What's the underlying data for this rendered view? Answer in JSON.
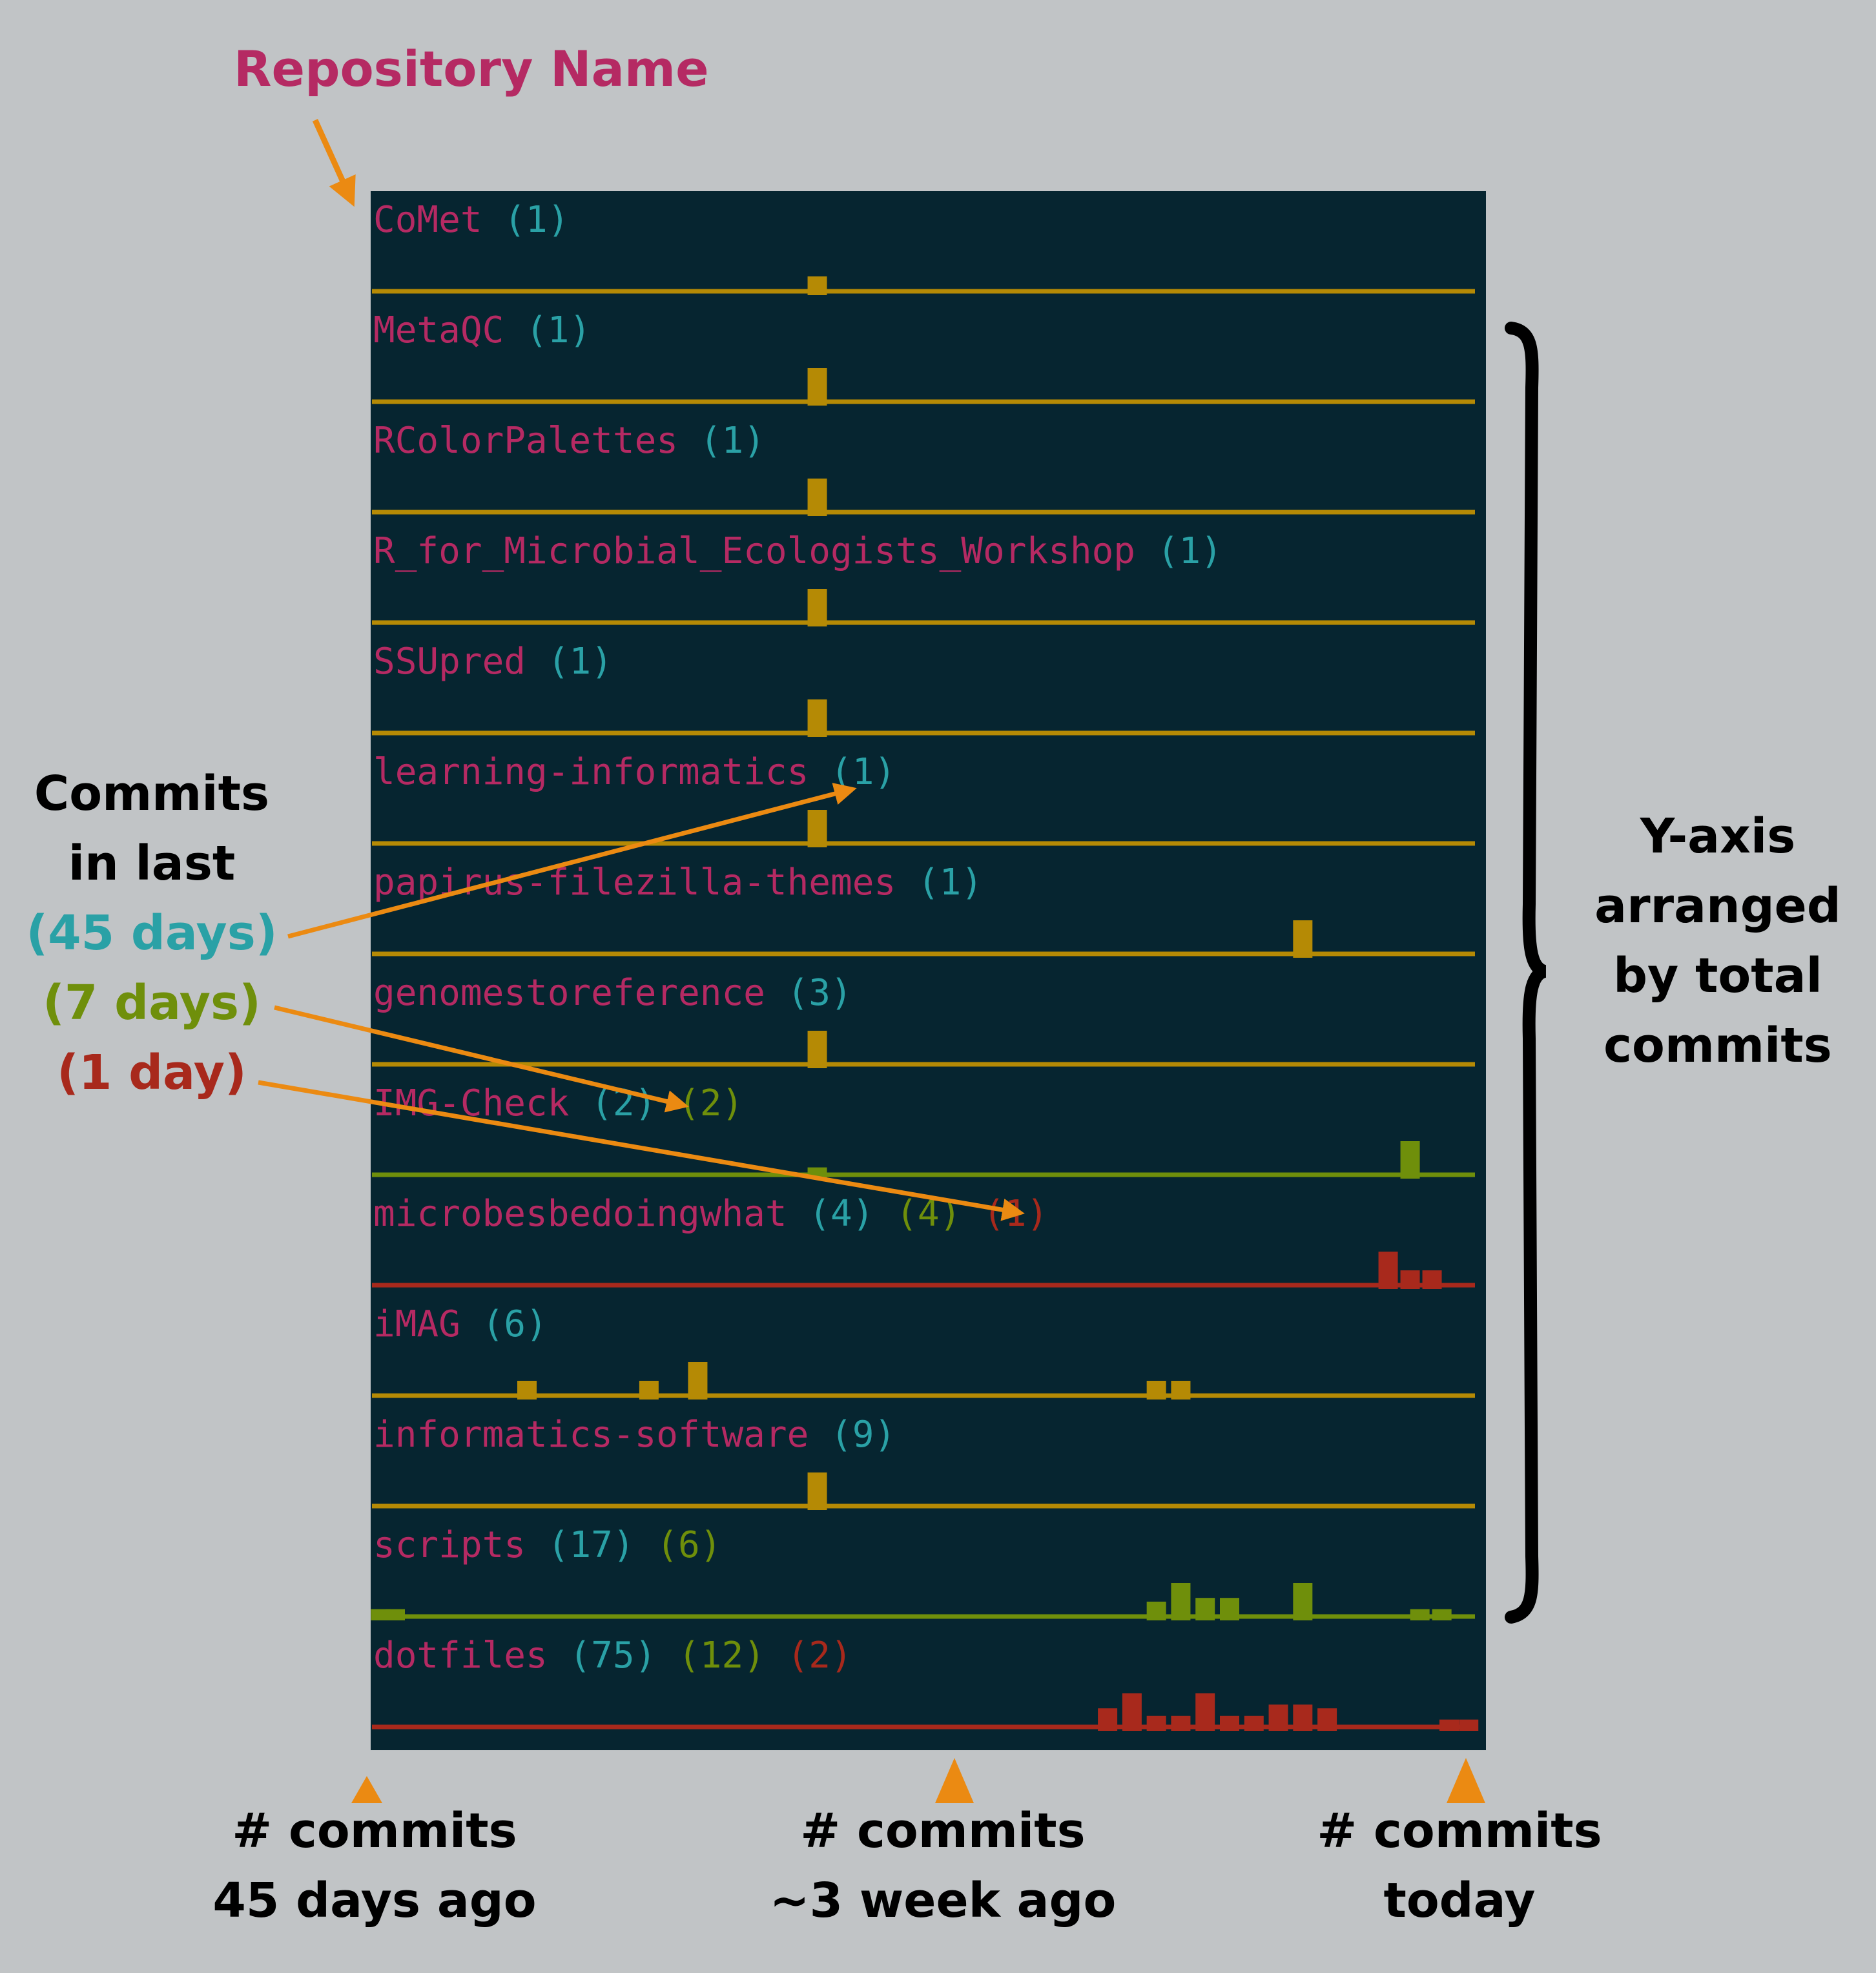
{
  "title_label": "Repository Name",
  "legend": {
    "line1": "Commits",
    "line2": "in last",
    "d45": "(45 days)",
    "d7": "(7 days)",
    "d1": "(1 day)"
  },
  "right_note": [
    "Y-axis",
    "arranged",
    "by total",
    "commits"
  ],
  "bottom": [
    {
      "l1": "# commits",
      "l2": "45 days ago"
    },
    {
      "l1": "# commits",
      "l2": "~3 week ago"
    },
    {
      "l1": "# commits",
      "l2": "today"
    }
  ],
  "colors": {
    "annotation_arrow": "#eb8a12",
    "title": "#b52a63",
    "d45": "#2aa1a6",
    "d7": "#6f8f0b",
    "d1": "#a8291c",
    "bar_yellow": "#b58a05",
    "bar_green": "#6f8f0b",
    "bar_red": "#a8291c",
    "terminal_bg": "#062530"
  },
  "repos": [
    {
      "name": "CoMet",
      "c45": "(1)",
      "c7": "",
      "c1": "",
      "color": "#b58a05",
      "series": [
        {
          "day": 18.2,
          "commits": 0.5
        }
      ]
    },
    {
      "name": "MetaQC",
      "c45": "(1)",
      "c7": "",
      "c1": "",
      "color": "#b58a05",
      "series": [
        {
          "day": 18.2,
          "commits": 1
        }
      ]
    },
    {
      "name": "RColorPalettes",
      "c45": "(1)",
      "c7": "",
      "c1": "",
      "color": "#b58a05",
      "series": [
        {
          "day": 18.2,
          "commits": 1
        }
      ]
    },
    {
      "name": "R_for_Microbial_Ecologists_Workshop",
      "c45": "(1)",
      "c7": "",
      "c1": "",
      "color": "#b58a05",
      "series": [
        {
          "day": 18.2,
          "commits": 1
        }
      ]
    },
    {
      "name": "SSUpred",
      "c45": "(1)",
      "c7": "",
      "c1": "",
      "color": "#b58a05",
      "series": [
        {
          "day": 18.2,
          "commits": 1
        }
      ]
    },
    {
      "name": "learning-informatics",
      "c45": "(1)",
      "c7": "",
      "c1": "",
      "color": "#b58a05",
      "series": [
        {
          "day": 18.2,
          "commits": 1
        }
      ]
    },
    {
      "name": "papirus-filezilla-themes",
      "c45": "(1)",
      "c7": "",
      "c1": "",
      "color": "#b58a05",
      "series": [
        {
          "day": 38.1,
          "commits": 1
        }
      ]
    },
    {
      "name": "genomestoreference",
      "c45": "(3)",
      "c7": "",
      "c1": "",
      "color": "#b58a05",
      "series": [
        {
          "day": 18.2,
          "commits": 1
        }
      ]
    },
    {
      "name": "IMG-Check",
      "c45": "(2)",
      "c7": "(2)",
      "c1": "",
      "color": "#6f8f0b",
      "series": [
        {
          "day": 18.2,
          "commits": 0.3
        },
        {
          "day": 42.5,
          "commits": 1
        }
      ]
    },
    {
      "name": "microbesbedoingwhat",
      "c45": "(4)",
      "c7": "(4)",
      "c1": "(1)",
      "color": "#a8291c",
      "series": [
        {
          "day": 41.6,
          "commits": 1
        },
        {
          "day": 42.5,
          "commits": 0.5
        },
        {
          "day": 43.4,
          "commits": 0.5
        }
      ]
    },
    {
      "name": "iMAG",
      "c45": "(6)",
      "c7": "",
      "c1": "",
      "color": "#b58a05",
      "series": [
        {
          "day": 6.3,
          "commits": 0.5
        },
        {
          "day": 11.3,
          "commits": 0.5
        },
        {
          "day": 13.3,
          "commits": 1
        },
        {
          "day": 32.1,
          "commits": 0.5
        },
        {
          "day": 33.1,
          "commits": 0.5
        }
      ]
    },
    {
      "name": "informatics-software",
      "c45": "(9)",
      "c7": "",
      "c1": "",
      "color": "#b58a05",
      "series": [
        {
          "day": 18.2,
          "commits": 1
        }
      ]
    },
    {
      "name": "scripts",
      "c45": "(17)",
      "c7": "(6)",
      "c1": "",
      "color": "#6f8f0b",
      "series": [
        {
          "day": 0.3,
          "commits": 0.3
        },
        {
          "day": 0.9,
          "commits": 0.3
        },
        {
          "day": 32.1,
          "commits": 0.5
        },
        {
          "day": 33.1,
          "commits": 1
        },
        {
          "day": 34.1,
          "commits": 0.6
        },
        {
          "day": 35.1,
          "commits": 0.6
        },
        {
          "day": 38.1,
          "commits": 1
        },
        {
          "day": 42.9,
          "commits": 0.3
        },
        {
          "day": 43.8,
          "commits": 0.3
        }
      ]
    },
    {
      "name": "dotfiles",
      "c45": "(75)",
      "c7": "(12)",
      "c1": "(2)",
      "color": "#a8291c",
      "series": [
        {
          "day": 30.1,
          "commits": 0.6
        },
        {
          "day": 31.1,
          "commits": 1
        },
        {
          "day": 32.1,
          "commits": 0.4
        },
        {
          "day": 33.1,
          "commits": 0.4
        },
        {
          "day": 34.1,
          "commits": 1
        },
        {
          "day": 35.1,
          "commits": 0.4
        },
        {
          "day": 36.1,
          "commits": 0.4
        },
        {
          "day": 37.1,
          "commits": 0.7
        },
        {
          "day": 38.1,
          "commits": 0.7
        },
        {
          "day": 39.1,
          "commits": 0.6
        },
        {
          "day": 44.1,
          "commits": 0.3
        },
        {
          "day": 44.9,
          "commits": 0.3
        }
      ]
    }
  ]
}
